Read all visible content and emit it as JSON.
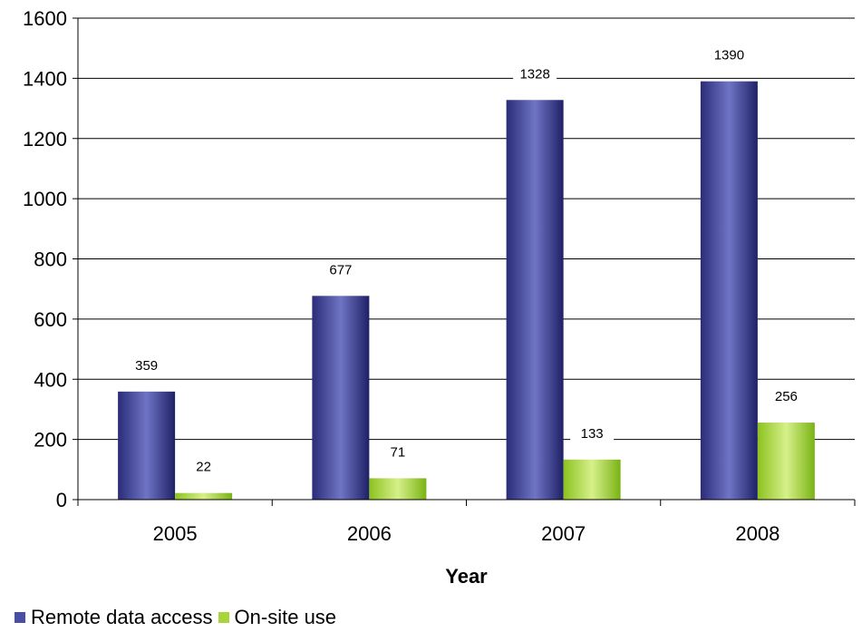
{
  "chart_data": {
    "type": "bar",
    "title": "",
    "xlabel": "Year",
    "ylabel": "",
    "categories": [
      "2005",
      "2006",
      "2007",
      "2008"
    ],
    "ylim": [
      0,
      1600
    ],
    "yticks": [
      0,
      200,
      400,
      600,
      800,
      1000,
      1200,
      1400,
      1600
    ],
    "grid": true,
    "legend_position": "bottom-left",
    "series": [
      {
        "name": "Remote data access",
        "values": [
          359,
          677,
          1328,
          1390
        ],
        "color": "#4b4fa3"
      },
      {
        "name": "On-site use",
        "values": [
          22,
          71,
          133,
          256
        ],
        "color": "#a8d63a"
      }
    ]
  }
}
